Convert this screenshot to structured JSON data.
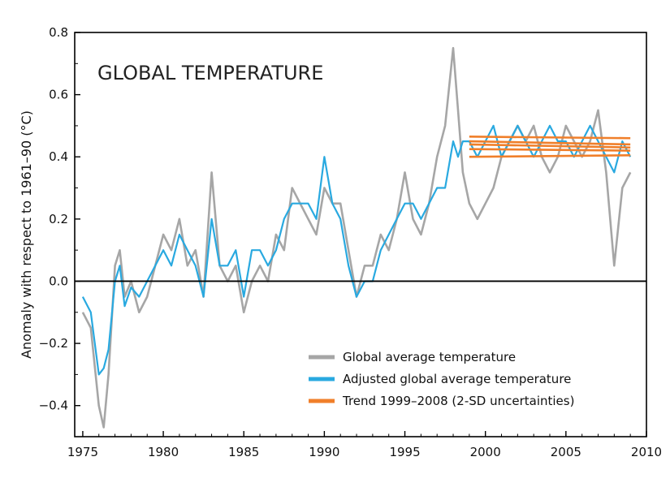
{
  "chart_data": {
    "type": "line",
    "title": "GLOBAL TEMPERATURE",
    "xlabel": "",
    "ylabel": "Anomaly with respect to 1961–90 (°C)",
    "xlim": [
      1974.5,
      2010
    ],
    "ylim": [
      -0.5,
      0.8
    ],
    "x_ticks": [
      1975,
      1980,
      1985,
      1990,
      1995,
      2000,
      2005,
      2010
    ],
    "x_tick_labels": [
      "1975",
      "1980",
      "1985",
      "1990",
      "1995",
      "2000",
      "2005",
      "2010"
    ],
    "y_ticks": [
      -0.4,
      -0.2,
      0.0,
      0.2,
      0.4,
      0.6,
      0.8
    ],
    "y_tick_labels": [
      "−0.4",
      "−0.2",
      "0.0",
      "0.2",
      "0.4",
      "0.6",
      "0.8"
    ],
    "zero_line": 0.0,
    "grid": false,
    "legend_position": "bottom-right",
    "series": [
      {
        "name": "Global average temperature",
        "color": "#a6a6a6",
        "x": [
          1975.0,
          1975.5,
          1976.0,
          1976.3,
          1976.6,
          1977.0,
          1977.3,
          1977.6,
          1978.0,
          1978.5,
          1979.0,
          1979.5,
          1980.0,
          1980.5,
          1981.0,
          1981.5,
          1982.0,
          1982.5,
          1983.0,
          1983.5,
          1984.0,
          1984.5,
          1985.0,
          1985.5,
          1986.0,
          1986.5,
          1987.0,
          1987.5,
          1988.0,
          1988.5,
          1989.0,
          1989.5,
          1990.0,
          1990.5,
          1991.0,
          1991.5,
          1992.0,
          1992.5,
          1993.0,
          1993.5,
          1994.0,
          1994.5,
          1995.0,
          1995.5,
          1996.0,
          1996.5,
          1997.0,
          1997.5,
          1998.0,
          1998.3,
          1998.6,
          1999.0,
          1999.5,
          2000.0,
          2000.5,
          2001.0,
          2001.5,
          2002.0,
          2002.5,
          2003.0,
          2003.5,
          2004.0,
          2004.5,
          2005.0,
          2005.5,
          2006.0,
          2006.5,
          2007.0,
          2007.5,
          2008.0,
          2008.5,
          2009.0
        ],
        "values": [
          -0.1,
          -0.15,
          -0.4,
          -0.47,
          -0.3,
          0.05,
          0.1,
          -0.05,
          0.0,
          -0.1,
          -0.05,
          0.05,
          0.15,
          0.1,
          0.2,
          0.05,
          0.1,
          -0.05,
          0.35,
          0.05,
          0.0,
          0.05,
          -0.1,
          0.0,
          0.05,
          0.0,
          0.15,
          0.1,
          0.3,
          0.25,
          0.2,
          0.15,
          0.3,
          0.25,
          0.25,
          0.1,
          -0.05,
          0.05,
          0.05,
          0.15,
          0.1,
          0.2,
          0.35,
          0.2,
          0.15,
          0.25,
          0.4,
          0.5,
          0.75,
          0.55,
          0.35,
          0.25,
          0.2,
          0.25,
          0.3,
          0.4,
          0.45,
          0.5,
          0.45,
          0.5,
          0.4,
          0.35,
          0.4,
          0.5,
          0.45,
          0.4,
          0.45,
          0.55,
          0.35,
          0.05,
          0.3,
          0.35
        ]
      },
      {
        "name": "Adjusted global average temperature",
        "color": "#29a9e0",
        "x": [
          1975.0,
          1975.5,
          1976.0,
          1976.3,
          1976.6,
          1977.0,
          1977.3,
          1977.6,
          1978.0,
          1978.5,
          1979.0,
          1979.5,
          1980.0,
          1980.5,
          1981.0,
          1981.5,
          1982.0,
          1982.5,
          1983.0,
          1983.5,
          1984.0,
          1984.5,
          1985.0,
          1985.5,
          1986.0,
          1986.5,
          1987.0,
          1987.5,
          1988.0,
          1988.5,
          1989.0,
          1989.5,
          1990.0,
          1990.5,
          1991.0,
          1991.5,
          1992.0,
          1992.5,
          1993.0,
          1993.5,
          1994.0,
          1994.5,
          1995.0,
          1995.5,
          1996.0,
          1996.5,
          1997.0,
          1997.5,
          1998.0,
          1998.3,
          1998.6,
          1999.0,
          1999.5,
          2000.0,
          2000.5,
          2001.0,
          2001.5,
          2002.0,
          2002.5,
          2003.0,
          2003.5,
          2004.0,
          2004.5,
          2005.0,
          2005.5,
          2006.0,
          2006.5,
          2007.0,
          2007.5,
          2008.0,
          2008.5,
          2009.0
        ],
        "values": [
          -0.05,
          -0.1,
          -0.3,
          -0.28,
          -0.22,
          0.0,
          0.05,
          -0.08,
          -0.02,
          -0.05,
          0.0,
          0.05,
          0.1,
          0.05,
          0.15,
          0.1,
          0.05,
          -0.05,
          0.2,
          0.05,
          0.05,
          0.1,
          -0.05,
          0.1,
          0.1,
          0.05,
          0.1,
          0.2,
          0.25,
          0.25,
          0.25,
          0.2,
          0.4,
          0.25,
          0.2,
          0.05,
          -0.05,
          0.0,
          0.0,
          0.1,
          0.15,
          0.2,
          0.25,
          0.25,
          0.2,
          0.25,
          0.3,
          0.3,
          0.45,
          0.4,
          0.45,
          0.45,
          0.4,
          0.45,
          0.5,
          0.4,
          0.45,
          0.5,
          0.45,
          0.4,
          0.45,
          0.5,
          0.45,
          0.45,
          0.4,
          0.45,
          0.5,
          0.45,
          0.4,
          0.35,
          0.45,
          0.4
        ]
      }
    ],
    "trend": {
      "name": "Trend 1999–2008 (2-SD uncertainties)",
      "color": "#f07f2a",
      "x_range": [
        1999.0,
        2009.0
      ],
      "central": [
        0.44,
        0.43
      ],
      "upper": [
        0.465,
        0.46
      ],
      "lower": [
        0.4,
        0.405
      ],
      "upper_mid": [
        0.45,
        0.44
      ],
      "lower_mid": [
        0.425,
        0.42
      ]
    }
  }
}
